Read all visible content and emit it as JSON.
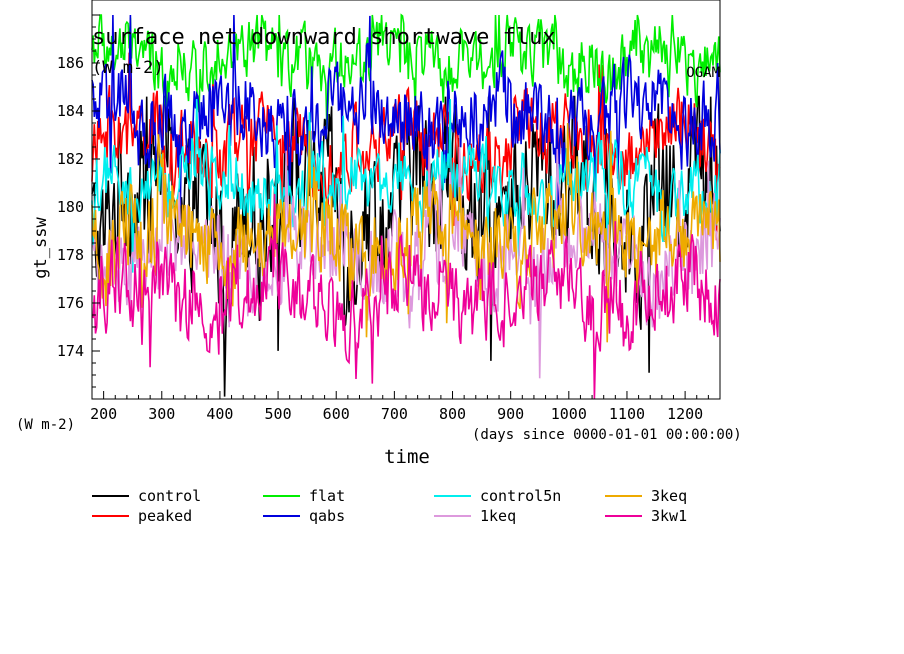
{
  "chart_data": {
    "type": "line",
    "title": "surface net downward shortwave flux",
    "units_label": "(W m-2)",
    "corner_label": "OGAM",
    "xlabel": "time",
    "x_units_note": "(days since 0000-01-01 00:00:00)",
    "ylabel": "gt_ssw",
    "y_units_note": "(W m-2)",
    "xlim": [
      180,
      1260
    ],
    "ylim": [
      172,
      188
    ],
    "xticks": [
      200,
      300,
      400,
      500,
      600,
      700,
      800,
      900,
      1000,
      1100,
      1200
    ],
    "yticks": [
      174,
      176,
      178,
      180,
      182,
      184,
      186
    ],
    "grid": false,
    "legend_position": "bottom",
    "series": [
      {
        "name": "control",
        "color": "#000000",
        "mean": 180.3,
        "amp": 3.4,
        "min": 172.1,
        "max": 184.6
      },
      {
        "name": "peaked",
        "color": "#ff0000",
        "mean": 182.6,
        "amp": 1.8,
        "min": 178.5,
        "max": 186.8
      },
      {
        "name": "flat",
        "color": "#00ee00",
        "mean": 186.2,
        "amp": 1.5,
        "min": 183.0,
        "max": 188.0
      },
      {
        "name": "qabs",
        "color": "#0000dd",
        "mean": 183.8,
        "amp": 1.9,
        "min": 179.5,
        "max": 188.0
      },
      {
        "name": "control5n",
        "color": "#00eeee",
        "mean": 181.0,
        "amp": 1.6,
        "min": 177.0,
        "max": 184.5
      },
      {
        "name": "1keq",
        "color": "#dd99dd",
        "mean": 178.0,
        "amp": 2.2,
        "min": 172.0,
        "max": 182.5
      },
      {
        "name": "3keq",
        "color": "#eeaa00",
        "mean": 178.8,
        "amp": 2.2,
        "min": 172.0,
        "max": 183.5
      },
      {
        "name": "3kw1",
        "color": "#ee0099",
        "mean": 176.4,
        "amp": 1.9,
        "min": 172.0,
        "max": 181.0
      }
    ]
  }
}
